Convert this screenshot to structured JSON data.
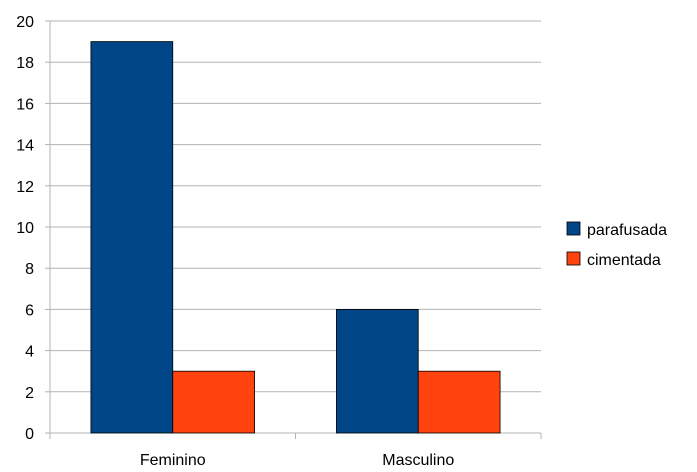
{
  "chart_data": {
    "type": "bar",
    "title": "",
    "xlabel": "",
    "ylabel": "",
    "categories": [
      "Feminino",
      "Masculino"
    ],
    "series": [
      {
        "name": "parafusada",
        "values": [
          19,
          6
        ],
        "color": "#004586"
      },
      {
        "name": "cimentada",
        "values": [
          3,
          3
        ],
        "color": "#FF420E"
      }
    ],
    "ylim": [
      0,
      20
    ],
    "yticks": [
      "0",
      "2",
      "4",
      "6",
      "8",
      "10",
      "12",
      "14",
      "16",
      "18",
      "20"
    ],
    "grid": true,
    "legend": "right"
  }
}
